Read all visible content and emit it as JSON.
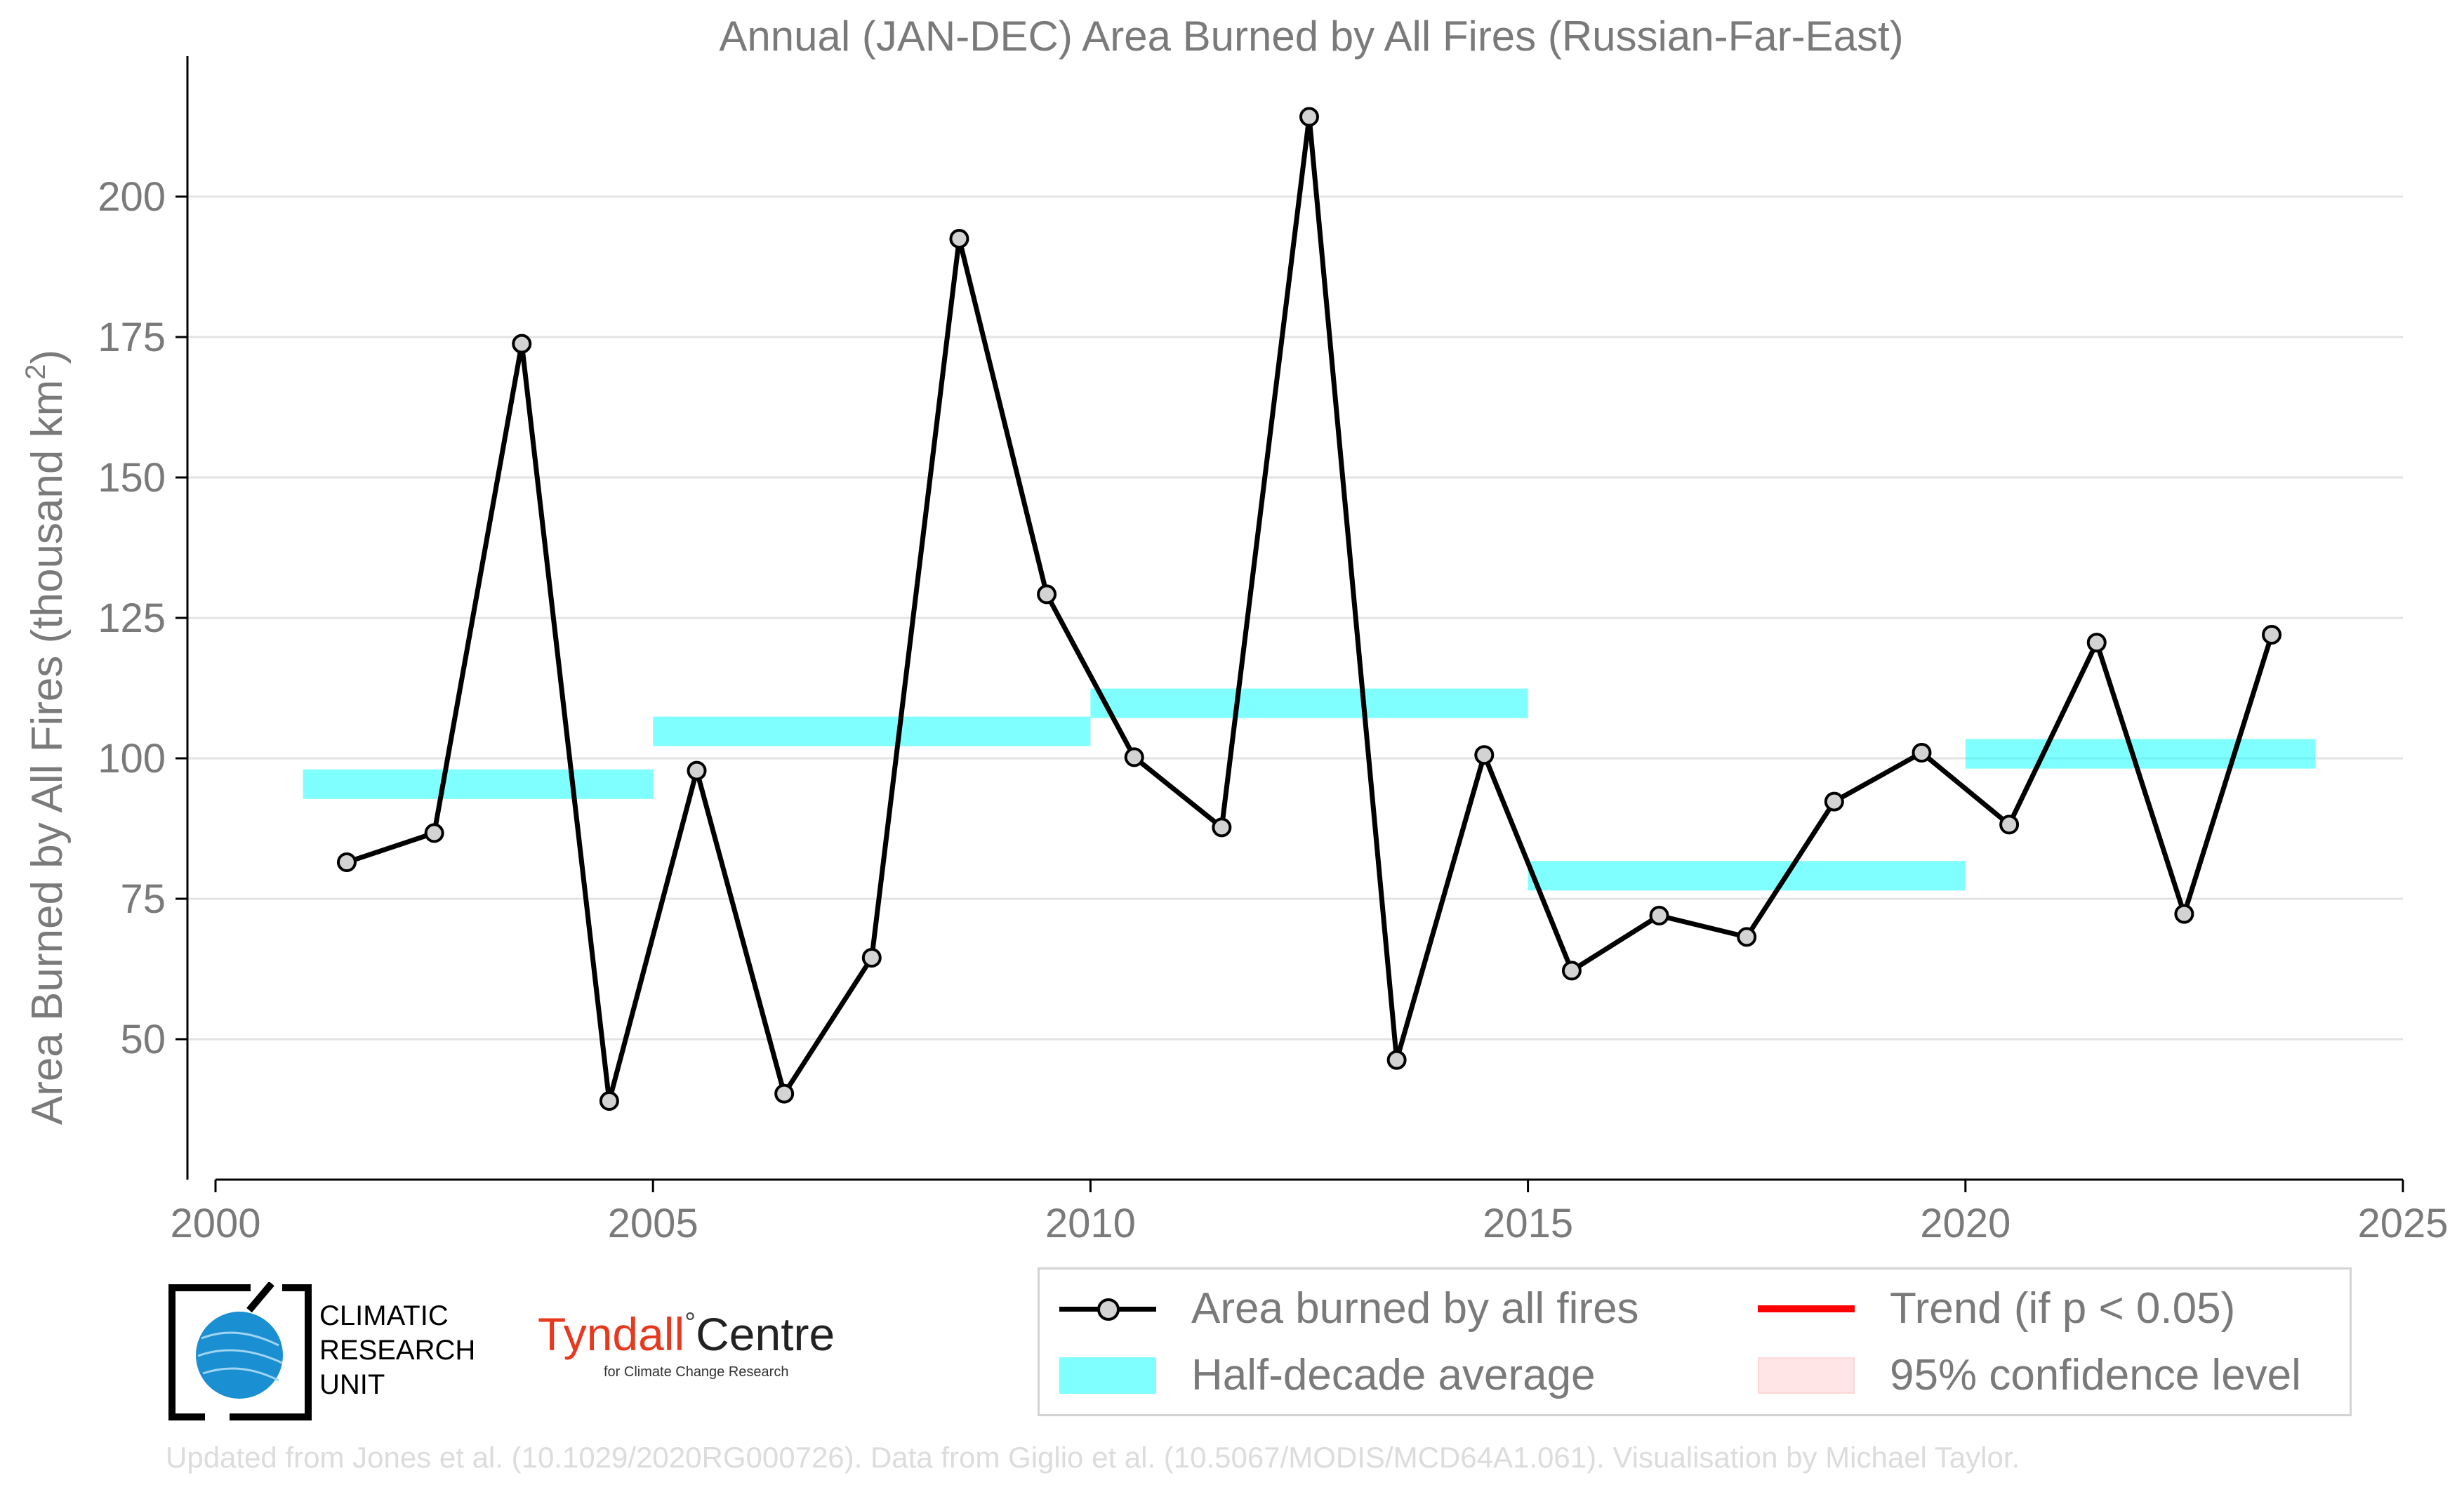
{
  "chart_data": {
    "type": "line",
    "title": "Annual (JAN-DEC) Area Burned by All Fires (Russian-Far-East)",
    "ylabel": "Area Burned by All Fires (thousand km",
    "ylabel_sup": "2",
    "ylabel_end": ")",
    "xlim": [
      2000,
      2025
    ],
    "ylim": [
      25,
      225
    ],
    "x_ticks": [
      "2000",
      "2005",
      "2010",
      "2015",
      "2020",
      "2025"
    ],
    "y_ticks": [
      "50",
      "75",
      "100",
      "125",
      "150",
      "175",
      "200"
    ],
    "grid": "horizontal",
    "series": [
      {
        "name": "Area burned by all fires",
        "color": "#000000",
        "marker_fill": "#d3d3d3",
        "x": [
          2001.5,
          2002.5,
          2003.5,
          2004.5,
          2005.5,
          2006.5,
          2007.5,
          2008.5,
          2009.5,
          2010.5,
          2011.5,
          2012.5,
          2013.5,
          2014.5,
          2015.5,
          2016.5,
          2017.5,
          2018.5,
          2019.5,
          2020.5,
          2021.5,
          2022.5,
          2023.5
        ],
        "values": [
          81.5,
          86.7,
          173.8,
          39.0,
          97.8,
          40.3,
          64.5,
          192.5,
          129.2,
          100.2,
          87.7,
          214.2,
          46.3,
          100.6,
          62.2,
          72.0,
          68.2,
          92.3,
          101.0,
          88.2,
          120.6,
          72.3,
          122.0
        ]
      }
    ],
    "half_decade_average": {
      "name": "Half-decade average",
      "color": "#00ffff",
      "segments": [
        {
          "x0": 2001,
          "x1": 2005,
          "value": 95.4
        },
        {
          "x0": 2005,
          "x1": 2010,
          "value": 104.8
        },
        {
          "x0": 2010,
          "x1": 2015,
          "value": 109.8
        },
        {
          "x0": 2015,
          "x1": 2020,
          "value": 79.1
        },
        {
          "x0": 2020,
          "x1": 2024,
          "value": 100.8
        }
      ]
    },
    "legend": {
      "position": "bottom-right",
      "entries": [
        {
          "label": "Area burned by all fires",
          "symbol": "line-marker",
          "color": "#000000"
        },
        {
          "label": "Trend (if p < 0.05)",
          "symbol": "line",
          "color": "#ff0000"
        },
        {
          "label": "Half-decade average",
          "symbol": "band",
          "color": "#00ffff"
        },
        {
          "label": "95% confidence level",
          "symbol": "band",
          "color": "#ffcccc"
        }
      ]
    }
  },
  "logos": {
    "cru": "CLIMATIC RESEARCH UNIT",
    "cru_lines": [
      "CLIMATIC",
      "RESEARCH",
      "UNIT"
    ],
    "tyndall_name": "Tyndall",
    "tyndall_degree": "°",
    "tyndall_centre": "Centre",
    "tyndall_sub": "for Climate Change Research"
  },
  "footer": "Updated from Jones et al. (10.1029/2020RG000726). Data from Giglio et al. (10.5067/MODIS/MCD64A1.061). Visualisation by Michael Taylor."
}
